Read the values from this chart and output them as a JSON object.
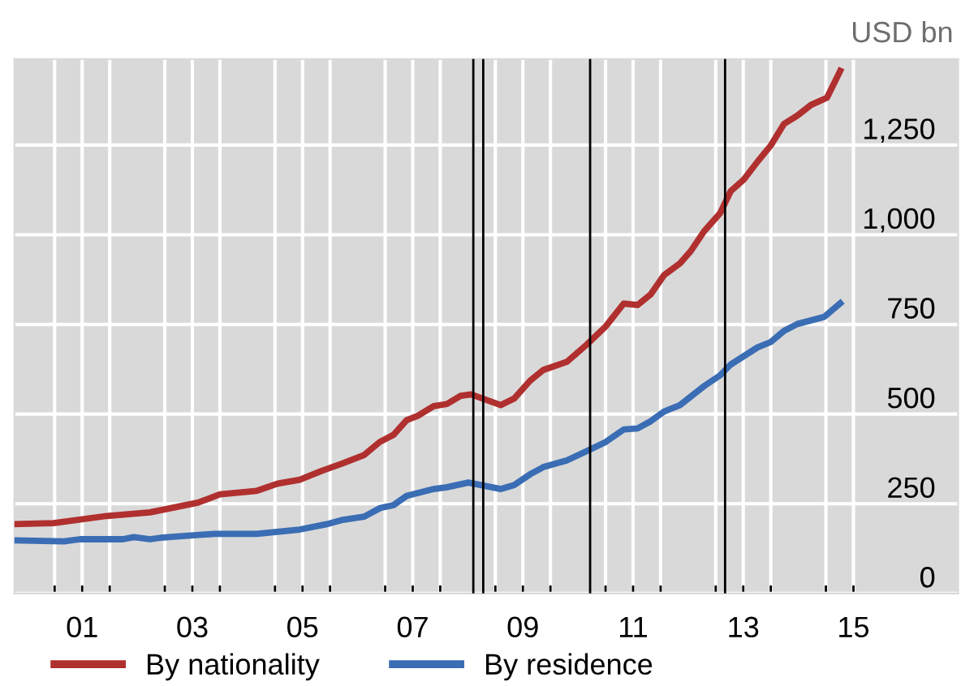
{
  "chart_data": {
    "type": "line",
    "annotations": [
      "USD bn"
    ],
    "xlim": [
      1999.77,
      2016.9
    ],
    "ylim": [
      0,
      1490
    ],
    "xticks": [
      {
        "value": 2000.5,
        "label": null
      },
      {
        "value": 2001,
        "label": "01"
      },
      {
        "value": 2001.5,
        "label": null
      },
      {
        "value": 2002.5,
        "label": null
      },
      {
        "value": 2003,
        "label": "03"
      },
      {
        "value": 2003.5,
        "label": null
      },
      {
        "value": 2004.5,
        "label": null
      },
      {
        "value": 2005,
        "label": "05"
      },
      {
        "value": 2005.5,
        "label": null
      },
      {
        "value": 2006.5,
        "label": null
      },
      {
        "value": 2007,
        "label": "07"
      },
      {
        "value": 2007.5,
        "label": null
      },
      {
        "value": 2008.5,
        "label": null
      },
      {
        "value": 2009,
        "label": "09"
      },
      {
        "value": 2009.5,
        "label": null
      },
      {
        "value": 2010.5,
        "label": null
      },
      {
        "value": 2011,
        "label": "11"
      },
      {
        "value": 2011.5,
        "label": null
      },
      {
        "value": 2012.5,
        "label": null
      },
      {
        "value": 2013,
        "label": "13"
      },
      {
        "value": 2013.5,
        "label": null
      },
      {
        "value": 2014.5,
        "label": null
      },
      {
        "value": 2015,
        "label": "15"
      }
    ],
    "yticks": [
      {
        "value": 0,
        "label": "0"
      },
      {
        "value": 250,
        "label": "250"
      },
      {
        "value": 500,
        "label": "500"
      },
      {
        "value": 750,
        "label": "750"
      },
      {
        "value": 1000,
        "label": "1,000"
      },
      {
        "value": 1250,
        "label": "1,250"
      }
    ],
    "grid": true,
    "legend": "bottom left",
    "marker": "none",
    "line_style": "solid",
    "ref_lines": [
      {
        "axis": "x",
        "value": 2008.1,
        "color": "#000000"
      },
      {
        "axis": "x",
        "value": 2008.28,
        "color": "#000000"
      },
      {
        "axis": "x",
        "value": 2010.22,
        "color": "#000000"
      },
      {
        "axis": "x",
        "value": 2012.67,
        "color": "#000000"
      }
    ],
    "series": [
      {
        "name": "By nationality",
        "color": "#b0302f",
        "x": [
          1999.78,
          2000.48,
          2001.45,
          2002.23,
          2003.1,
          2003.5,
          2004.17,
          2004.55,
          2004.95,
          2005.34,
          2005.72,
          2006.12,
          2006.4,
          2006.65,
          2006.89,
          2007.09,
          2007.38,
          2007.62,
          2007.87,
          2008.06,
          2008.6,
          2008.84,
          2009.13,
          2009.37,
          2009.8,
          2010.16,
          2010.5,
          2010.83,
          2011.08,
          2011.32,
          2011.56,
          2011.85,
          2012.05,
          2012.29,
          2012.58,
          2012.77,
          2013.01,
          2013.26,
          2013.5,
          2013.74,
          2013.98,
          2014.23,
          2014.52,
          2014.76
        ],
        "values": [
          193,
          196,
          216,
          226,
          253,
          276,
          286,
          306,
          317,
          341,
          362,
          386,
          422,
          442,
          483,
          495,
          522,
          528,
          551,
          555,
          525,
          543,
          593,
          623,
          646,
          694,
          744,
          808,
          804,
          834,
          887,
          920,
          955,
          1010,
          1060,
          1121,
          1154,
          1204,
          1249,
          1309,
          1332,
          1362,
          1382,
          1457
        ]
      },
      {
        "name": "By residence",
        "color": "#3a6db4",
        "x": [
          1999.78,
          2000.67,
          2000.96,
          2001.74,
          2001.94,
          2002.23,
          2002.42,
          2003.4,
          2004.17,
          2004.95,
          2005.44,
          2005.73,
          2006.12,
          2006.41,
          2006.65,
          2006.89,
          2007.38,
          2007.62,
          2008.01,
          2008.6,
          2008.84,
          2009.13,
          2009.37,
          2009.8,
          2010.16,
          2010.5,
          2010.83,
          2011.08,
          2011.32,
          2011.56,
          2011.85,
          2012.29,
          2012.58,
          2012.77,
          2013.26,
          2013.5,
          2013.74,
          2013.98,
          2014.47,
          2014.76
        ],
        "values": [
          148,
          145,
          151,
          151,
          157,
          151,
          155,
          166,
          166,
          178,
          193,
          205,
          214,
          238,
          246,
          272,
          291,
          296,
          309,
          291,
          302,
          332,
          352,
          371,
          397,
          422,
          457,
          460,
          480,
          507,
          525,
          578,
          608,
          638,
          686,
          701,
          732,
          751,
          771,
          809
        ]
      }
    ]
  }
}
